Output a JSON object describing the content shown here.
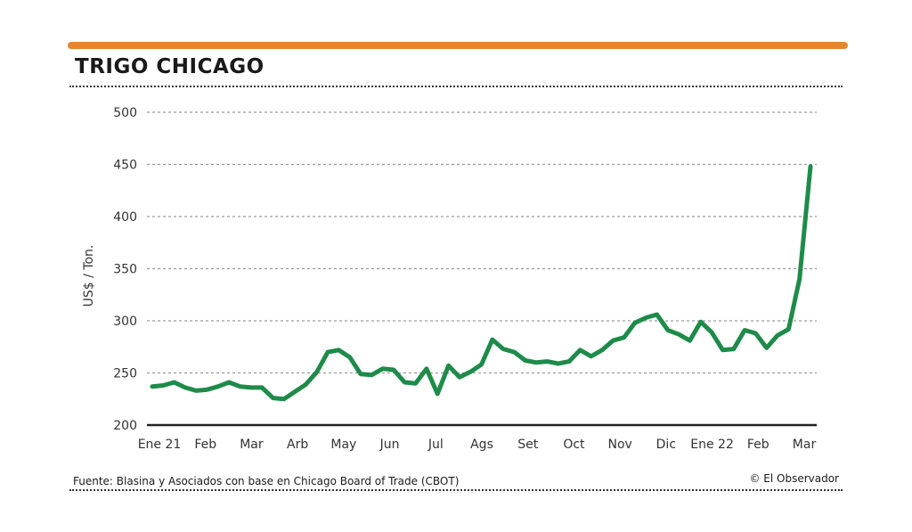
{
  "header": {
    "title": "TRIGO CHICAGO"
  },
  "footer": {
    "source": "Fuente: Blasina y Asociados con base en Chicago Board of Trade (CBOT)",
    "credit": "© El Observador"
  },
  "colors": {
    "accent_bar": "#e8862f",
    "line": "#1e8b4a",
    "grid": "#9a9a9a"
  },
  "chart_data": {
    "type": "line",
    "title": "TRIGO CHICAGO",
    "xlabel": "",
    "ylabel": "US$ / Ton.",
    "ylim": [
      200,
      500
    ],
    "yticks": [
      200,
      250,
      300,
      350,
      400,
      450,
      500
    ],
    "xticks": [
      "Ene 21",
      "Feb",
      "Mar",
      "Arb",
      "May",
      "Jun",
      "Jul",
      "Ags",
      "Set",
      "Oct",
      "Nov",
      "Dic",
      "Ene 22",
      "Feb",
      "Mar"
    ],
    "grid": true,
    "series": [
      {
        "values": [
          237,
          238,
          241,
          236,
          233,
          234,
          237,
          241,
          237,
          236,
          236,
          226,
          225,
          232,
          239,
          251,
          270,
          272,
          265,
          249,
          248,
          254,
          253,
          241,
          240,
          254,
          230,
          257,
          246,
          251,
          258,
          282,
          273,
          270,
          262,
          260,
          261,
          259,
          261,
          272,
          266,
          272,
          281,
          284,
          298,
          303,
          306,
          291,
          287,
          281,
          299,
          289,
          272,
          273,
          291,
          288,
          274,
          286,
          292,
          340,
          448
        ]
      }
    ]
  }
}
